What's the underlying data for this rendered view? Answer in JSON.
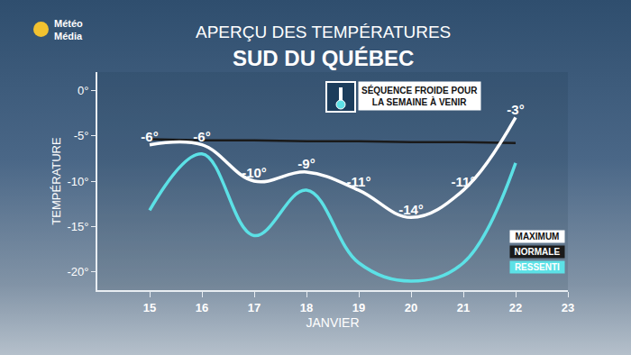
{
  "chart_data": {
    "type": "line",
    "brand": [
      "Météo",
      "Média"
    ],
    "title": "APERÇU DES TEMPÉRATURES",
    "subtitle": "SUD DU QUÉBEC",
    "annotation": [
      "SÉQUENCE FROIDE POUR",
      "LA SEMAINE À VENIR"
    ],
    "x_label": "JANVIER",
    "y_label": "TEMPÉRATURE",
    "x": [
      15,
      16,
      17,
      18,
      19,
      20,
      21,
      22
    ],
    "xlim": [
      14,
      23
    ],
    "xticks": [
      15,
      16,
      17,
      18,
      19,
      20,
      21,
      22,
      23
    ],
    "ylim": [
      -22,
      2
    ],
    "yticks": [
      {
        "value": 0,
        "label": "0°"
      },
      {
        "value": -5,
        "label": "-5°"
      },
      {
        "value": -10,
        "label": "-10°"
      },
      {
        "value": -15,
        "label": "-15°"
      },
      {
        "value": -20,
        "label": "-20°"
      }
    ],
    "grid": false,
    "legend": "bottom right",
    "series": [
      {
        "name": "MAXIMUM",
        "color": "#ffffff",
        "line_style": "spline",
        "data_labels": true,
        "values": [
          -6,
          -6,
          -10,
          -9,
          -11,
          -14,
          -11,
          -3
        ],
        "value_labels": [
          "-6°",
          "-6°",
          "-10°",
          "-9°",
          "-11°",
          "-14°",
          "-11°",
          "-3°"
        ]
      },
      {
        "name": "NORMALE",
        "color": "#1a1a1a",
        "line_style": "solid",
        "values": [
          -5.4,
          -5.5,
          -5.5,
          -5.6,
          -5.6,
          -5.7,
          -5.7,
          -5.8
        ]
      },
      {
        "name": "RESSENTI",
        "color": "#5ce1e6",
        "line_style": "spline",
        "values": [
          -13.2,
          -7,
          -16,
          -11,
          -19,
          -21,
          -19,
          -8
        ]
      }
    ]
  }
}
